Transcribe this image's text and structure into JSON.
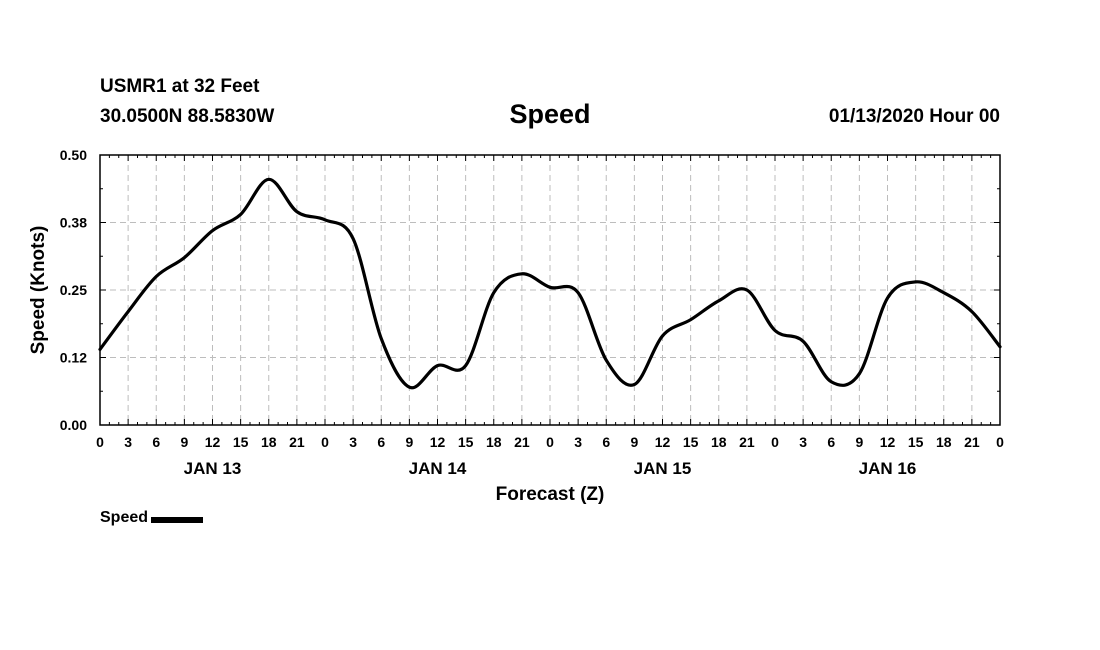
{
  "header": {
    "station": "USMR1 at 32 Feet",
    "coords": "30.0500N 88.5830W",
    "title": "Speed",
    "run_time": "01/13/2020 Hour 00"
  },
  "legend": {
    "label": "Speed",
    "color": "#000000"
  },
  "chart_data": {
    "type": "line",
    "title": "Speed",
    "xlabel": "Forecast (Z)",
    "ylabel": "Speed (Knots)",
    "ylim": [
      0,
      0.5
    ],
    "yticks": [
      "0.00",
      "0.12",
      "0.25",
      "0.38",
      "0.50"
    ],
    "ytick_values": [
      0,
      0.125,
      0.25,
      0.375,
      0.5
    ],
    "xlim": [
      0,
      96
    ],
    "xtick_step_hours": 3,
    "xtick_labels": [
      "0",
      "3",
      "6",
      "9",
      "12",
      "15",
      "18",
      "21",
      "0",
      "3",
      "6",
      "9",
      "12",
      "15",
      "18",
      "21",
      "0",
      "3",
      "6",
      "9",
      "12",
      "15",
      "18",
      "21",
      "0",
      "3",
      "6",
      "9",
      "12",
      "15",
      "18",
      "21",
      "0"
    ],
    "day_labels": [
      {
        "label": "JAN 13",
        "hour": 12
      },
      {
        "label": "JAN 14",
        "hour": 36
      },
      {
        "label": "JAN 15",
        "hour": 60
      },
      {
        "label": "JAN 16",
        "hour": 84
      }
    ],
    "grid": true,
    "legend_position": "bottom-left",
    "series": [
      {
        "name": "Speed",
        "color": "#000000",
        "x": [
          0,
          3,
          6,
          9,
          12,
          15,
          18,
          21,
          24,
          27,
          30,
          33,
          36,
          39,
          42,
          45,
          48,
          51,
          54,
          57,
          60,
          63,
          66,
          69,
          72,
          75,
          78,
          81,
          84,
          87,
          90,
          93,
          96
        ],
        "values": [
          0.14,
          0.21,
          0.275,
          0.31,
          0.36,
          0.39,
          0.455,
          0.395,
          0.38,
          0.345,
          0.16,
          0.07,
          0.11,
          0.11,
          0.245,
          0.28,
          0.255,
          0.245,
          0.12,
          0.075,
          0.165,
          0.195,
          0.23,
          0.25,
          0.175,
          0.155,
          0.08,
          0.095,
          0.235,
          0.265,
          0.245,
          0.21,
          0.145
        ]
      }
    ]
  }
}
